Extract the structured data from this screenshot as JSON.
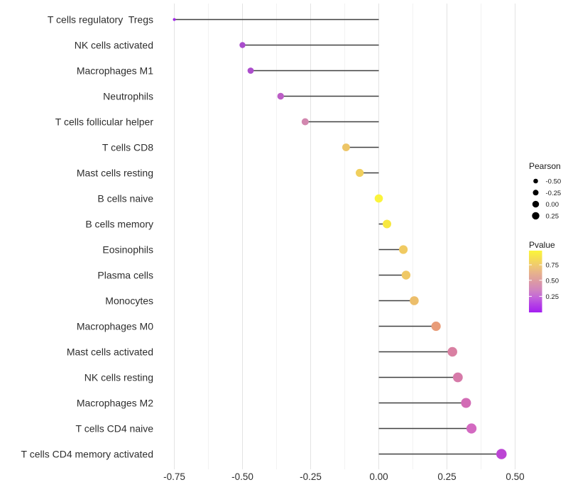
{
  "page": {
    "background": "#ffffff"
  },
  "chart_data": {
    "type": "scatter",
    "variant": "lollipop",
    "title": "",
    "xlabel": "",
    "ylabel": "",
    "grid": true,
    "baseline_x": 0,
    "xlim": [
      -0.8,
      0.55
    ],
    "x_ticks": [
      -0.75,
      -0.5,
      -0.25,
      0,
      0.25,
      0.5
    ],
    "x_tick_labels": [
      "-0.75",
      "-0.50",
      "-0.25",
      "0.00",
      "0.25",
      "0.50"
    ],
    "x_minor_ticks": [
      -0.625,
      -0.375,
      -0.125,
      0.125,
      0.375
    ],
    "series_name": "Pearson",
    "categories": [
      "T cells regulatory  Tregs",
      "NK cells activated",
      "Macrophages M1",
      "Neutrophils",
      "T cells follicular helper",
      "T cells CD8",
      "Mast cells resting",
      "B cells naive",
      "B cells memory",
      "Eosinophils",
      "Plasma cells",
      "Monocytes",
      "Macrophages M0",
      "Mast cells activated",
      "NK cells resting",
      "Macrophages M2",
      "T cells CD4 naive",
      "T cells CD4 memory activated"
    ],
    "points": [
      {
        "label": "T cells regulatory  Tregs",
        "pearson": -0.75,
        "color": "#A228E8",
        "radius_px": 2.0
      },
      {
        "label": "NK cells activated",
        "pearson": -0.5,
        "color": "#A94CCC",
        "radius_px": 4.2
      },
      {
        "label": "Macrophages M1",
        "pearson": -0.47,
        "color": "#AC4ECC",
        "radius_px": 4.4
      },
      {
        "label": "Neutrophils",
        "pearson": -0.36,
        "color": "#BC5EC6",
        "radius_px": 4.7
      },
      {
        "label": "T cells follicular helper",
        "pearson": -0.27,
        "color": "#D287AF",
        "radius_px": 5.0
      },
      {
        "label": "T cells CD8",
        "pearson": -0.12,
        "color": "#EDC566",
        "radius_px": 5.4
      },
      {
        "label": "Mast cells resting",
        "pearson": -0.07,
        "color": "#F0CF5D",
        "radius_px": 5.6
      },
      {
        "label": "B cells naive",
        "pearson": 0.0,
        "color": "#FBF43B",
        "radius_px": 5.8,
        "center_artifact": true
      },
      {
        "label": "B cells memory",
        "pearson": 0.03,
        "color": "#F7E840",
        "radius_px": 6.0
      },
      {
        "label": "Eosinophils",
        "pearson": 0.09,
        "color": "#F0CA62",
        "radius_px": 6.1
      },
      {
        "label": "Plasma cells",
        "pearson": 0.1,
        "color": "#EFC865",
        "radius_px": 6.2
      },
      {
        "label": "Monocytes",
        "pearson": 0.13,
        "color": "#ECBE6B",
        "radius_px": 6.3
      },
      {
        "label": "Macrophages M0",
        "pearson": 0.21,
        "color": "#E89C79",
        "radius_px": 6.6
      },
      {
        "label": "Mast cells activated",
        "pearson": 0.27,
        "color": "#D980A2",
        "radius_px": 6.8
      },
      {
        "label": "NK cells resting",
        "pearson": 0.29,
        "color": "#D67AA9",
        "radius_px": 6.9
      },
      {
        "label": "Macrophages M2",
        "pearson": 0.32,
        "color": "#D26CB5",
        "radius_px": 7.0
      },
      {
        "label": "T cells CD4 naive",
        "pearson": 0.34,
        "color": "#D369C1",
        "radius_px": 7.1
      },
      {
        "label": "T cells CD4 memory activated",
        "pearson": 0.45,
        "color": "#BC45D4",
        "radius_px": 7.3
      }
    ],
    "size_legend": {
      "title": "Pearson",
      "dot_color": "#000000",
      "entries": [
        {
          "label": "-0.50",
          "radius_px": 3.3
        },
        {
          "label": "-0.25",
          "radius_px": 4.0
        },
        {
          "label": "0.00",
          "radius_px": 4.7
        },
        {
          "label": "0.25",
          "radius_px": 5.2
        }
      ]
    },
    "color_legend": {
      "title": "Pvalue",
      "tick_labels": [
        "0.75",
        "0.50",
        "0.25"
      ],
      "tick_fractions_from_top": [
        0.23,
        0.48,
        0.74
      ],
      "gradient_top_to_bottom": [
        "#FBF63A",
        "#F5DE52",
        "#EFC873",
        "#E6AF8F",
        "#DC9AA4",
        "#D187BD",
        "#C468D8",
        "#B43FE6",
        "#A41FF0"
      ]
    },
    "style": {
      "stem_color": "#404040",
      "grid_major_color": "#E3E3E3",
      "grid_minor_color": "#F2F2F2",
      "axis_text_color": "#2E2E2E",
      "legend_text_color": "#1A1A1A"
    }
  }
}
